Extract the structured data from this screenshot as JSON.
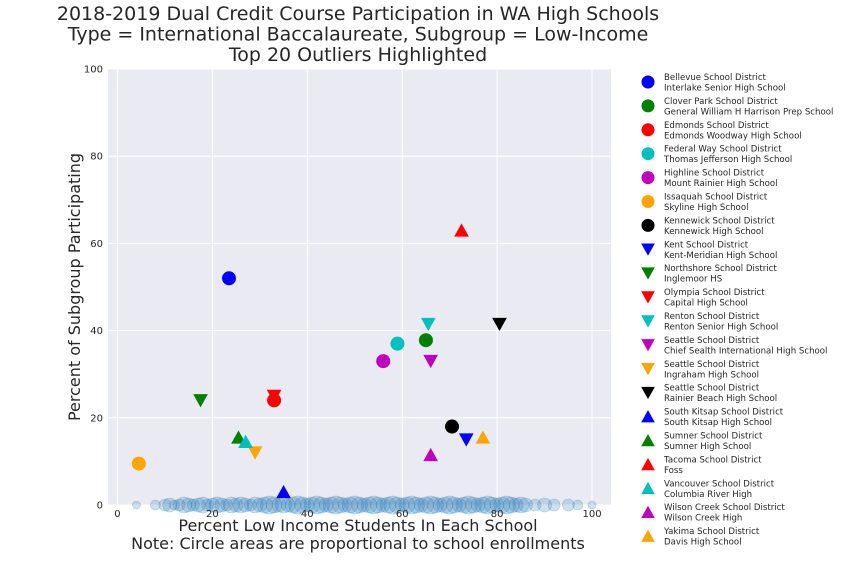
{
  "chart_data": {
    "type": "scatter",
    "title_lines": [
      "2018-2019 Dual Credit Course Participation in WA High Schools",
      "Type = International Baccalaureate, Subgroup = Low-Income",
      "Top 20 Outliers Highlighted"
    ],
    "xlabel_lines": [
      "Percent Low Income Students In Each School",
      "Note: Circle areas are proportional to school enrollments"
    ],
    "ylabel": "Percent of Subgroup Participating",
    "xlim": [
      -2,
      104
    ],
    "ylim": [
      0,
      100
    ],
    "x_ticks": [
      0,
      20,
      40,
      60,
      80,
      100
    ],
    "y_ticks": [
      0,
      20,
      40,
      60,
      80,
      100
    ],
    "x_tick_labels": [
      "0",
      "20",
      "40",
      "60",
      "80",
      "100"
    ],
    "y_tick_labels": [
      "0",
      "20",
      "40",
      "60",
      "80",
      "100"
    ],
    "grid": true,
    "legend_position": "outside-right",
    "background_color": "#eaeaf2",
    "background_points": {
      "color": "#1f77b4",
      "y": 0,
      "x": [
        4,
        8,
        10,
        11,
        12,
        13,
        14,
        15,
        16,
        17,
        18,
        19,
        20,
        21,
        22,
        23,
        24,
        25,
        26,
        27,
        28,
        29,
        30,
        31,
        32,
        33,
        34,
        35,
        36,
        37,
        38,
        39,
        40,
        41,
        42,
        43,
        44,
        45,
        46,
        47,
        48,
        49,
        50,
        51,
        52,
        53,
        54,
        55,
        56,
        57,
        58,
        59,
        60,
        61,
        62,
        63,
        64,
        65,
        66,
        67,
        68,
        69,
        70,
        71,
        72,
        73,
        74,
        75,
        76,
        77,
        78,
        79,
        80,
        81,
        82,
        83,
        84,
        85,
        86,
        88,
        90,
        92,
        95,
        97,
        100
      ],
      "sizes": [
        4,
        5,
        6,
        7,
        5,
        6,
        8,
        7,
        6,
        7,
        8,
        6,
        7,
        8,
        7,
        6,
        8,
        7,
        8,
        7,
        6,
        8,
        7,
        8,
        9,
        8,
        7,
        8,
        7,
        8,
        9,
        8,
        7,
        8,
        9,
        8,
        7,
        8,
        9,
        8,
        7,
        8,
        9,
        8,
        7,
        8,
        9,
        8,
        7,
        8,
        9,
        8,
        7,
        8,
        9,
        8,
        7,
        8,
        9,
        8,
        7,
        8,
        9,
        8,
        7,
        8,
        9,
        8,
        7,
        8,
        9,
        8,
        7,
        8,
        9,
        8,
        7,
        8,
        7,
        6,
        7,
        6,
        6,
        5,
        4
      ]
    },
    "series": [
      {
        "district": "Bellevue School District",
        "school": "Interlake Senior High School",
        "marker": "circle",
        "color": "#0000ff",
        "x": 23.5,
        "y": 52
      },
      {
        "district": "Clover Park School District",
        "school": "General William H Harrison Prep School",
        "marker": "circle",
        "color": "#008000",
        "x": 65,
        "y": 37.8
      },
      {
        "district": "Edmonds School District",
        "school": "Edmonds Woodway High School",
        "marker": "circle",
        "color": "#ff0000",
        "x": 33,
        "y": 24
      },
      {
        "district": "Federal Way School District",
        "school": "Thomas Jefferson High School",
        "marker": "circle",
        "color": "#00bfbf",
        "x": 59,
        "y": 37
      },
      {
        "district": "Highline School District",
        "school": "Mount Rainier High School",
        "marker": "circle",
        "color": "#bf00bf",
        "x": 56,
        "y": 33
      },
      {
        "district": "Issaquah School District",
        "school": "Skyline High School",
        "marker": "circle",
        "color": "#ffa500",
        "x": 4.5,
        "y": 9.5
      },
      {
        "district": "Kennewick School District",
        "school": "Kennewick High School",
        "marker": "circle",
        "color": "#000000",
        "x": 70.5,
        "y": 18
      },
      {
        "district": "Kent School District",
        "school": "Kent-Meridian High School",
        "marker": "triangle-down",
        "color": "#0000ff",
        "x": 73.5,
        "y": 15
      },
      {
        "district": "Northshore School District",
        "school": "Inglemoor HS",
        "marker": "triangle-down",
        "color": "#008000",
        "x": 17.5,
        "y": 24
      },
      {
        "district": "Olympia School District",
        "school": "Capital High School",
        "marker": "triangle-down",
        "color": "#ff0000",
        "x": 33,
        "y": 25
      },
      {
        "district": "Renton School District",
        "school": "Renton Senior High School",
        "marker": "triangle-down",
        "color": "#00bfbf",
        "x": 65.5,
        "y": 41.5
      },
      {
        "district": "Seattle School District",
        "school": "Chief Sealth International High School",
        "marker": "triangle-down",
        "color": "#bf00bf",
        "x": 66,
        "y": 33
      },
      {
        "district": "Seattle School District",
        "school": "Ingraham High School",
        "marker": "triangle-down",
        "color": "#ffa500",
        "x": 29,
        "y": 12
      },
      {
        "district": "Seattle School District",
        "school": "Rainier Beach High School",
        "marker": "triangle-down",
        "color": "#000000",
        "x": 80.5,
        "y": 41.5
      },
      {
        "district": "South Kitsap School District",
        "school": "South Kitsap High School",
        "marker": "triangle-up",
        "color": "#0000ff",
        "x": 35,
        "y": 3
      },
      {
        "district": "Sumner School District",
        "school": "Sumner High School",
        "marker": "triangle-up",
        "color": "#008000",
        "x": 25.5,
        "y": 15.5
      },
      {
        "district": "Tacoma School District",
        "school": "Foss",
        "marker": "triangle-up",
        "color": "#ff0000",
        "x": 72.5,
        "y": 63
      },
      {
        "district": "Vancouver School District",
        "school": "Columbia River High",
        "marker": "triangle-up",
        "color": "#00bfbf",
        "x": 27,
        "y": 14.5
      },
      {
        "district": "Wilson Creek School District",
        "school": "Wilson Creek High",
        "marker": "triangle-up",
        "color": "#bf00bf",
        "x": 66,
        "y": 11.5
      },
      {
        "district": "Yakima School District",
        "school": "Davis High School",
        "marker": "triangle-up",
        "color": "#ffa500",
        "x": 77,
        "y": 15.5
      }
    ]
  }
}
